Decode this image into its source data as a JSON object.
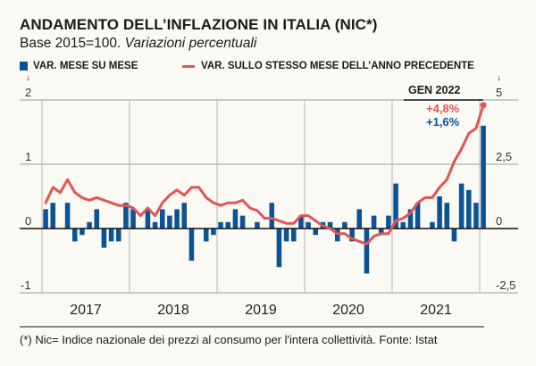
{
  "title": "ANDAMENTO DELL’INFLAZIONE IN ITALIA (NIC*)",
  "subtitle_plain": "Base 2015=100.",
  "subtitle_italic": "Variazioni percentuali",
  "footnote": "(*) Nic= Indice nazionale dei prezzi al consumo per l'intera collettività. Fonte: Istat",
  "annotation": {
    "date": "GEN 2022",
    "yoy_label": "+4,8%",
    "mom_label": "+1,6%"
  },
  "colors": {
    "bars": "#0b5394",
    "line": "#e05555",
    "background": "#fbf9f4"
  },
  "chart_data": {
    "type": "bar+line",
    "title": "ANDAMENTO DELL’INFLAZIONE IN ITALIA (NIC*)",
    "subtitle": "Base 2015=100. Variazioni percentuali",
    "legend": [
      {
        "name": "VAR. MESE SU MESE",
        "kind": "bar",
        "axis": "left"
      },
      {
        "name": "VAR. SULLO STESSO MESE DELL’ANNO PRECEDENTE",
        "kind": "line",
        "axis": "right"
      }
    ],
    "legend_position": "top",
    "x_categories": [
      "2017",
      "2018",
      "2019",
      "2020",
      "2021"
    ],
    "x_start": "2017-01",
    "x_end": "2022-01",
    "left_axis": {
      "ticks": [
        "2",
        "1",
        "0",
        "-1"
      ],
      "tick_values": [
        2,
        1,
        0,
        -1
      ],
      "range": [
        -1,
        2
      ],
      "arrow": "↓"
    },
    "right_axis": {
      "ticks": [
        "5",
        "2,5",
        "0",
        "-2,5"
      ],
      "tick_values": [
        5,
        2.5,
        0,
        -2.5
      ],
      "range": [
        -2.5,
        5
      ],
      "arrow": "↓"
    },
    "grid": true,
    "series": [
      {
        "name": "VAR. MESE SU MESE",
        "type": "bar",
        "values": [
          0.3,
          0.4,
          0.0,
          0.4,
          -0.2,
          -0.1,
          0.1,
          0.3,
          -0.3,
          -0.2,
          -0.2,
          0.4,
          0.3,
          0.0,
          0.3,
          0.1,
          0.3,
          0.2,
          0.3,
          0.4,
          -0.5,
          0.0,
          -0.2,
          -0.1,
          0.1,
          0.1,
          0.3,
          0.2,
          0.0,
          0.1,
          0.0,
          0.4,
          -0.6,
          -0.2,
          -0.2,
          0.2,
          0.1,
          -0.1,
          0.1,
          0.1,
          -0.2,
          0.1,
          -0.2,
          0.3,
          -0.7,
          0.2,
          -0.1,
          0.2,
          0.7,
          0.1,
          0.3,
          0.4,
          0.0,
          0.1,
          0.5,
          0.4,
          -0.2,
          0.7,
          0.6,
          0.4,
          1.6
        ]
      },
      {
        "name": "VAR. SULLO STESSO MESE DELL’ANNO PRECEDENTE",
        "type": "line",
        "values": [
          1.0,
          1.6,
          1.4,
          1.9,
          1.4,
          1.2,
          1.1,
          1.2,
          1.1,
          1.0,
          0.9,
          0.9,
          0.8,
          0.5,
          0.8,
          0.5,
          1.0,
          1.3,
          1.5,
          1.3,
          1.6,
          1.6,
          1.2,
          1.0,
          0.9,
          1.0,
          1.0,
          1.1,
          0.8,
          0.7,
          0.4,
          0.4,
          0.3,
          0.2,
          0.2,
          0.5,
          0.5,
          0.3,
          0.1,
          0.0,
          -0.2,
          -0.2,
          -0.4,
          -0.5,
          -0.6,
          -0.3,
          -0.2,
          -0.2,
          0.3,
          0.4,
          0.6,
          1.0,
          1.2,
          1.2,
          1.6,
          1.9,
          2.6,
          3.1,
          3.7,
          3.9,
          4.8
        ]
      }
    ],
    "annotations": [
      {
        "x": "2022-01",
        "text": "GEN 2022"
      },
      {
        "x": "2022-01",
        "series": "line",
        "text": "+4,8%"
      },
      {
        "x": "2022-01",
        "series": "bar",
        "text": "+1,6%"
      }
    ]
  }
}
